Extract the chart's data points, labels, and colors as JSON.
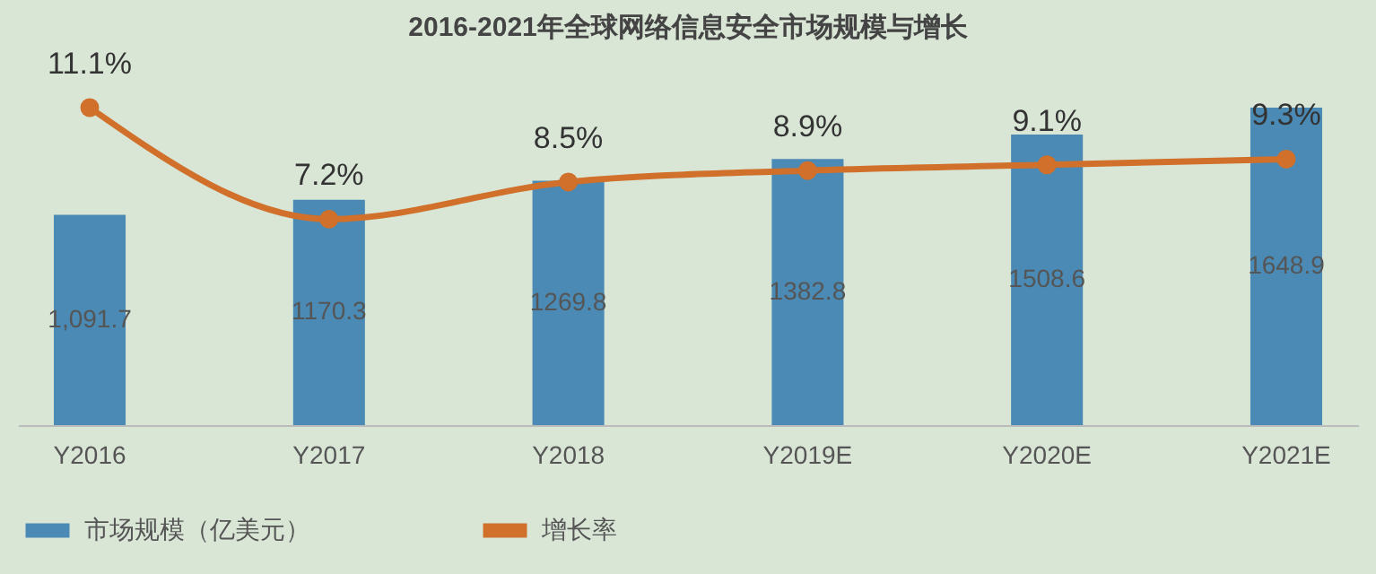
{
  "chart_data": {
    "type": "bar",
    "title": "2016-2021年全球网络信息安全市场规模与增长",
    "categories": [
      "Y2016",
      "Y2017",
      "Y2018",
      "Y2019E",
      "Y2020E",
      "Y2021E"
    ],
    "series": [
      {
        "name": "市场规模（亿美元）",
        "color": "#4a8ab4",
        "values": [
          1091.7,
          1170.3,
          1269.8,
          1382.8,
          1508.6,
          1648.9
        ],
        "value_labels": [
          "1,091.7",
          "1170.3",
          "1269.8",
          "1382.8",
          "1508.6",
          "1648.9"
        ]
      },
      {
        "name": "增长率",
        "type": "line",
        "axis": "y2",
        "color": "#d0702a",
        "values": [
          11.1,
          7.2,
          8.5,
          8.9,
          9.1,
          9.3
        ],
        "value_labels": [
          "11.1%",
          "7.2%",
          "8.5%",
          "8.9%",
          "9.1%",
          "9.3%"
        ]
      }
    ],
    "tick_labels": "x",
    "legend": "bottom",
    "grid": false,
    "marker": "circle"
  }
}
